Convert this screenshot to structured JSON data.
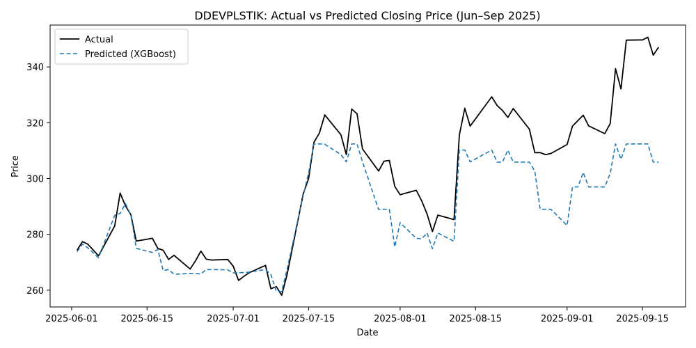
{
  "chart_data": {
    "type": "line",
    "title": "DDEVPLSTIK: Actual vs Predicted Closing Price (Jun–Sep 2025)",
    "xlabel": "Date",
    "ylabel": "Price",
    "xlim": [
      "2025-05-28",
      "2025-09-23"
    ],
    "ylim": [
      254,
      355
    ],
    "x_ticks": [
      "2025-06-01",
      "2025-06-15",
      "2025-07-01",
      "2025-07-15",
      "2025-08-01",
      "2025-08-15",
      "2025-09-01",
      "2025-09-15"
    ],
    "y_ticks": [
      260,
      280,
      300,
      320,
      340
    ],
    "grid": false,
    "legend": "top-left",
    "series": [
      {
        "name": "Actual",
        "color": "#000000",
        "style": "solid",
        "points": [
          [
            "2025-06-02",
            274.3
          ],
          [
            "2025-06-03",
            277.4
          ],
          [
            "2025-06-04",
            276.5
          ],
          [
            "2025-06-06",
            272.3
          ],
          [
            "2025-06-09",
            283.0
          ],
          [
            "2025-06-10",
            294.8
          ],
          [
            "2025-06-11",
            290.2
          ],
          [
            "2025-06-12",
            287.0
          ],
          [
            "2025-06-13",
            277.6
          ],
          [
            "2025-06-16",
            278.6
          ],
          [
            "2025-06-17",
            275.0
          ],
          [
            "2025-06-18",
            274.3
          ],
          [
            "2025-06-19",
            271.0
          ],
          [
            "2025-06-20",
            272.5
          ],
          [
            "2025-06-23",
            267.6
          ],
          [
            "2025-06-24",
            270.5
          ],
          [
            "2025-06-25",
            274.0
          ],
          [
            "2025-06-26",
            271.1
          ],
          [
            "2025-06-27",
            270.8
          ],
          [
            "2025-06-30",
            271.0
          ],
          [
            "2025-07-01",
            268.6
          ],
          [
            "2025-07-02",
            263.5
          ],
          [
            "2025-07-03",
            265.0
          ],
          [
            "2025-07-04",
            266.3
          ],
          [
            "2025-07-07",
            268.9
          ],
          [
            "2025-07-08",
            260.5
          ],
          [
            "2025-07-09",
            261.3
          ],
          [
            "2025-07-10",
            258.2
          ],
          [
            "2025-07-11",
            265.5
          ],
          [
            "2025-07-14",
            294.5
          ],
          [
            "2025-07-15",
            300.0
          ],
          [
            "2025-07-16",
            313.0
          ],
          [
            "2025-07-17",
            316.3
          ],
          [
            "2025-07-18",
            322.8
          ],
          [
            "2025-07-21",
            315.7
          ],
          [
            "2025-07-22",
            308.6
          ],
          [
            "2025-07-23",
            324.9
          ],
          [
            "2025-07-24",
            323.2
          ],
          [
            "2025-07-25",
            310.6
          ],
          [
            "2025-07-28",
            302.7
          ],
          [
            "2025-07-29",
            306.2
          ],
          [
            "2025-07-30",
            306.5
          ],
          [
            "2025-07-31",
            297.2
          ],
          [
            "2025-08-01",
            294.2
          ],
          [
            "2025-08-04",
            295.8
          ],
          [
            "2025-08-05",
            292.0
          ],
          [
            "2025-08-06",
            287.3
          ],
          [
            "2025-08-07",
            281.0
          ],
          [
            "2025-08-08",
            286.9
          ],
          [
            "2025-08-11",
            285.3
          ],
          [
            "2025-08-12",
            315.6
          ],
          [
            "2025-08-13",
            325.2
          ],
          [
            "2025-08-14",
            318.8
          ],
          [
            "2025-08-18",
            329.3
          ],
          [
            "2025-08-19",
            326.2
          ],
          [
            "2025-08-20",
            324.4
          ],
          [
            "2025-08-21",
            321.9
          ],
          [
            "2025-08-22",
            325.1
          ],
          [
            "2025-08-25",
            317.7
          ],
          [
            "2025-08-26",
            309.3
          ],
          [
            "2025-08-27",
            309.3
          ],
          [
            "2025-08-28",
            308.6
          ],
          [
            "2025-08-29",
            309.0
          ],
          [
            "2025-09-01",
            312.2
          ],
          [
            "2025-09-02",
            318.8
          ],
          [
            "2025-09-04",
            322.7
          ],
          [
            "2025-09-05",
            318.9
          ],
          [
            "2025-09-08",
            316.1
          ],
          [
            "2025-09-09",
            319.7
          ],
          [
            "2025-09-10",
            339.4
          ],
          [
            "2025-09-11",
            332.1
          ],
          [
            "2025-09-12",
            349.6
          ],
          [
            "2025-09-15",
            349.7
          ],
          [
            "2025-09-16",
            350.6
          ],
          [
            "2025-09-17",
            344.2
          ],
          [
            "2025-09-18",
            347.1
          ]
        ]
      },
      {
        "name": "Predicted (XGBoost)",
        "color": "#1f77b4",
        "style": "dashed",
        "points": [
          [
            "2025-06-02",
            273.8
          ],
          [
            "2025-06-03",
            276.5
          ],
          [
            "2025-06-04",
            275.2
          ],
          [
            "2025-06-06",
            271.6
          ],
          [
            "2025-06-09",
            286.8
          ],
          [
            "2025-06-10",
            287.5
          ],
          [
            "2025-06-11",
            291.0
          ],
          [
            "2025-06-12",
            286.9
          ],
          [
            "2025-06-13",
            275.0
          ],
          [
            "2025-06-16",
            273.5
          ],
          [
            "2025-06-17",
            274.6
          ],
          [
            "2025-06-18",
            267.0
          ],
          [
            "2025-06-19",
            267.4
          ],
          [
            "2025-06-20",
            265.7
          ],
          [
            "2025-06-23",
            266.0
          ],
          [
            "2025-06-24",
            266.0
          ],
          [
            "2025-06-25",
            265.8
          ],
          [
            "2025-06-26",
            267.4
          ],
          [
            "2025-06-27",
            267.4
          ],
          [
            "2025-06-30",
            267.3
          ],
          [
            "2025-07-01",
            266.2
          ],
          [
            "2025-07-02",
            266.3
          ],
          [
            "2025-07-03",
            266.3
          ],
          [
            "2025-07-04",
            266.5
          ],
          [
            "2025-07-07",
            267.4
          ],
          [
            "2025-07-08",
            265.6
          ],
          [
            "2025-07-09",
            259.6
          ],
          [
            "2025-07-10",
            259.5
          ],
          [
            "2025-07-11",
            267.4
          ],
          [
            "2025-07-14",
            294.0
          ],
          [
            "2025-07-15",
            302.0
          ],
          [
            "2025-07-16",
            312.4
          ],
          [
            "2025-07-17",
            312.4
          ],
          [
            "2025-07-18",
            312.3
          ],
          [
            "2025-07-21",
            308.6
          ],
          [
            "2025-07-22",
            306.0
          ],
          [
            "2025-07-23",
            312.4
          ],
          [
            "2025-07-24",
            312.4
          ],
          [
            "2025-07-25",
            306.0
          ],
          [
            "2025-07-28",
            288.9
          ],
          [
            "2025-07-29",
            289.0
          ],
          [
            "2025-07-30",
            289.0
          ],
          [
            "2025-07-31",
            275.5
          ],
          [
            "2025-08-01",
            284.2
          ],
          [
            "2025-08-04",
            278.6
          ],
          [
            "2025-08-05",
            278.4
          ],
          [
            "2025-08-06",
            280.5
          ],
          [
            "2025-08-07",
            274.9
          ],
          [
            "2025-08-08",
            280.5
          ],
          [
            "2025-08-11",
            277.5
          ],
          [
            "2025-08-12",
            310.2
          ],
          [
            "2025-08-13",
            310.2
          ],
          [
            "2025-08-14",
            306.0
          ],
          [
            "2025-08-18",
            310.2
          ],
          [
            "2025-08-19",
            305.9
          ],
          [
            "2025-08-20",
            305.9
          ],
          [
            "2025-08-21",
            310.2
          ],
          [
            "2025-08-22",
            305.9
          ],
          [
            "2025-08-25",
            305.9
          ],
          [
            "2025-08-26",
            302.7
          ],
          [
            "2025-08-27",
            289.0
          ],
          [
            "2025-08-28",
            289.0
          ],
          [
            "2025-08-29",
            289.0
          ],
          [
            "2025-09-01",
            283.2
          ],
          [
            "2025-09-02",
            297.0
          ],
          [
            "2025-09-03",
            297.0
          ],
          [
            "2025-09-04",
            302.2
          ],
          [
            "2025-09-05",
            297.0
          ],
          [
            "2025-09-08",
            297.0
          ],
          [
            "2025-09-09",
            301.8
          ],
          [
            "2025-09-10",
            312.4
          ],
          [
            "2025-09-11",
            306.9
          ],
          [
            "2025-09-12",
            312.4
          ],
          [
            "2025-09-15",
            312.4
          ],
          [
            "2025-09-16",
            312.4
          ],
          [
            "2025-09-17",
            305.9
          ],
          [
            "2025-09-18",
            305.9
          ]
        ]
      }
    ]
  }
}
